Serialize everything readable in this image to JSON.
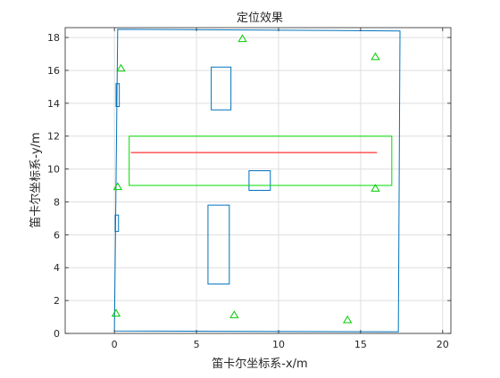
{
  "chart_data": {
    "type": "line",
    "title": "定位效果",
    "xlabel": "笛卡尔坐标系-x/m",
    "ylabel": "笛卡尔坐标系-y/m",
    "xlim": [
      -3,
      20.5
    ],
    "ylim": [
      0,
      18.6
    ],
    "xticks": [
      0,
      5,
      10,
      15,
      20
    ],
    "yticks": [
      0,
      2,
      4,
      6,
      8,
      10,
      12,
      14,
      16,
      18
    ],
    "grid": true,
    "colors": {
      "room": "#0072bd",
      "region": "#00dd00",
      "path": "#ff3333",
      "anchors": "#00cc00",
      "grid": "#dfdfdf",
      "axes": "#262626"
    },
    "series": [
      {
        "type": "polygon",
        "points": [
          [
            0.2,
            18.5
          ],
          [
            17.4,
            18.4
          ],
          [
            17.3,
            0.1
          ],
          [
            0.0,
            0.15
          ]
        ]
      },
      {
        "type": "polygon",
        "points": [
          [
            5.9,
            16.2
          ],
          [
            7.1,
            16.2
          ],
          [
            7.1,
            13.6
          ],
          [
            5.9,
            13.6
          ]
        ]
      },
      {
        "type": "polygon",
        "points": [
          [
            8.2,
            9.9
          ],
          [
            9.5,
            9.9
          ],
          [
            9.5,
            8.7
          ],
          [
            8.2,
            8.7
          ]
        ]
      },
      {
        "type": "polygon",
        "points": [
          [
            5.7,
            7.8
          ],
          [
            7.0,
            7.8
          ],
          [
            7.0,
            3.0
          ],
          [
            5.7,
            3.0
          ]
        ]
      },
      {
        "type": "polygon",
        "points": [
          [
            0.1,
            15.2
          ],
          [
            0.3,
            15.2
          ],
          [
            0.3,
            13.8
          ],
          [
            0.1,
            13.8
          ]
        ]
      },
      {
        "type": "polygon",
        "points": [
          [
            0.05,
            7.2
          ],
          [
            0.25,
            7.2
          ],
          [
            0.25,
            6.2
          ],
          [
            0.05,
            6.2
          ]
        ]
      },
      {
        "type": "polygon",
        "points": [
          [
            0.9,
            12.0
          ],
          [
            16.9,
            12.0
          ],
          [
            16.9,
            9.0
          ],
          [
            0.9,
            9.0
          ]
        ]
      },
      {
        "type": "line",
        "points": [
          [
            1.0,
            11.0
          ],
          [
            16.0,
            11.0
          ]
        ]
      },
      {
        "type": "scatter",
        "points": [
          [
            7.8,
            17.9
          ],
          [
            0.4,
            16.1
          ],
          [
            15.9,
            16.8
          ],
          [
            0.2,
            8.9
          ],
          [
            15.9,
            8.8
          ],
          [
            0.1,
            1.2
          ],
          [
            7.3,
            1.1
          ],
          [
            14.2,
            0.8
          ]
        ]
      }
    ]
  }
}
